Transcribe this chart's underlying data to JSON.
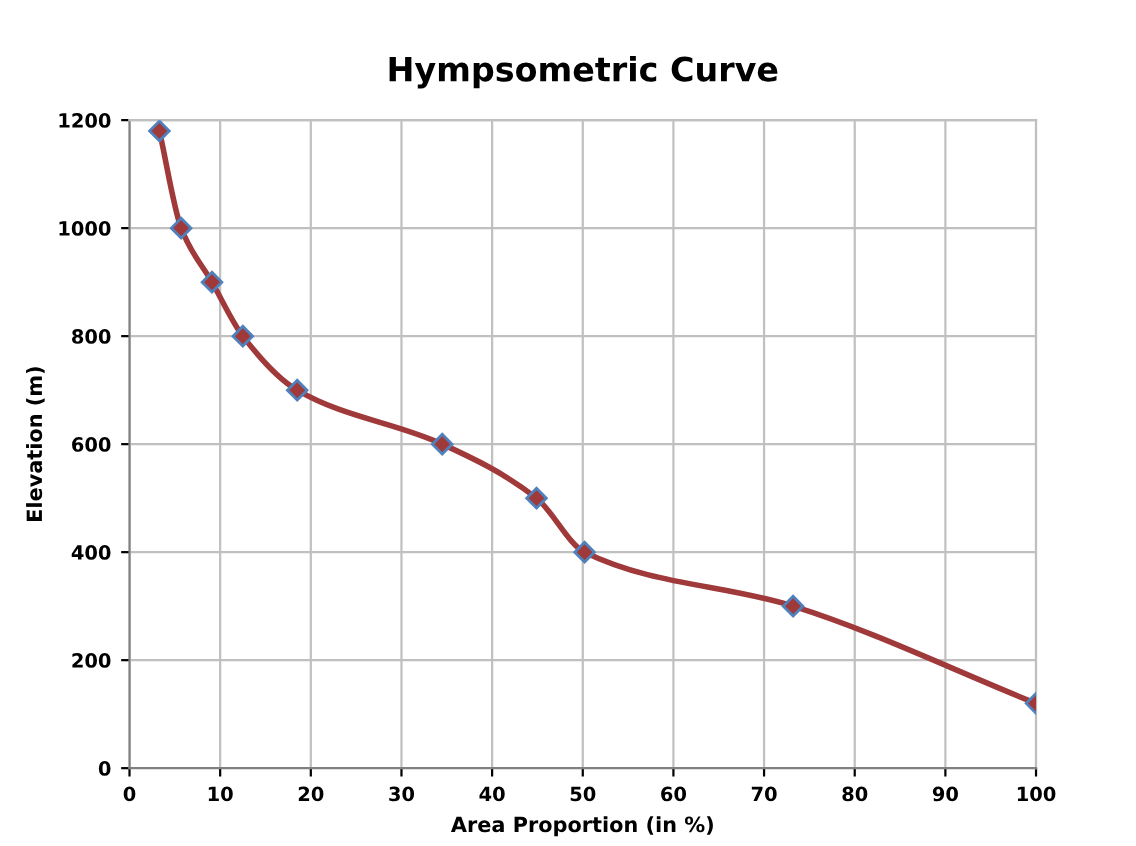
{
  "chart_data": {
    "type": "line",
    "title": "Hympsometric Curve",
    "xlabel": "Area Proportion (in %)",
    "ylabel": "Elevation (m)",
    "x": [
      3.3,
      5.7,
      9.1,
      12.5,
      18.5,
      34.5,
      44.9,
      50.2,
      73.2,
      100
    ],
    "series": [
      {
        "color": "#a0393a",
        "values": [
          1180,
          1000,
          900,
          800,
          700,
          600,
          500,
          400,
          300,
          120
        ]
      }
    ],
    "marker": "diamond",
    "line_style": "solid",
    "xlim": [
      0,
      100
    ],
    "xticks": [
      0,
      10,
      20,
      30,
      40,
      50,
      60,
      70,
      80,
      90,
      100
    ],
    "ylim": [
      0,
      1200
    ],
    "yticks": [
      0,
      200,
      400,
      600,
      800,
      1000,
      1200
    ],
    "grid": true
  }
}
